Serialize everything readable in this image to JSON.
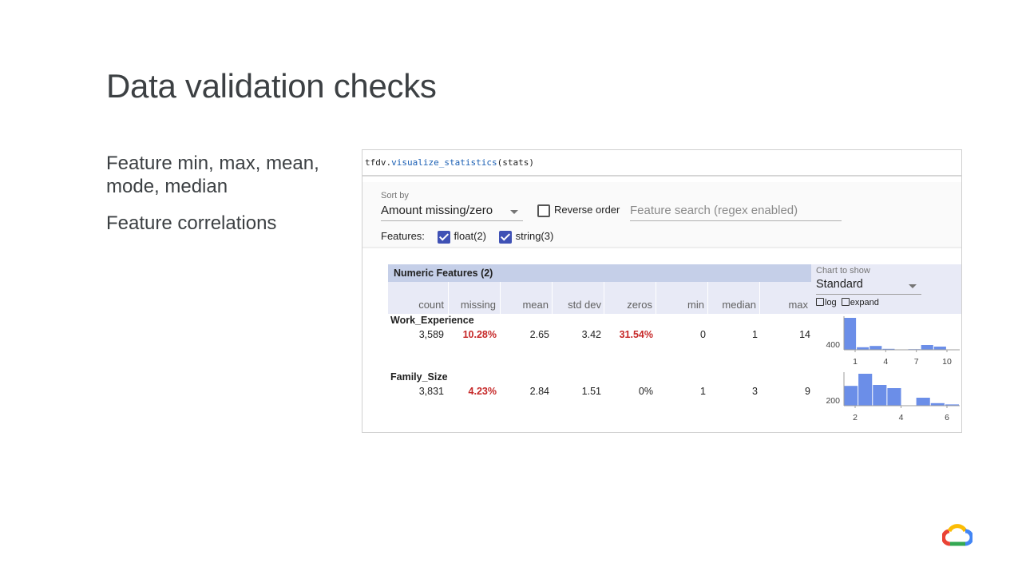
{
  "slide": {
    "title": "Data validation checks",
    "bullets": [
      "Feature min, max, mean, mode, median",
      "Feature correlations"
    ]
  },
  "notebook": {
    "code_prefix": "tfdv.",
    "code_fn": "visualize_statistics",
    "code_args": "(stats)"
  },
  "controls": {
    "sort_by_label": "Sort by",
    "sort_by_value": "Amount missing/zero",
    "reverse_order_label": "Reverse order",
    "reverse_order_checked": false,
    "search_placeholder": "Feature search (regex enabled)",
    "features_label": "Features:",
    "feature_filters": [
      {
        "label": "float(2)",
        "checked": true
      },
      {
        "label": "string(3)",
        "checked": true
      }
    ]
  },
  "table": {
    "title": "Numeric Features (2)",
    "columns": [
      "count",
      "missing",
      "mean",
      "std dev",
      "zeros",
      "min",
      "median",
      "max"
    ],
    "chart_to_show_label": "Chart to show",
    "chart_to_show_value": "Standard",
    "log_label": "log",
    "expand_label": "expand",
    "rows": [
      {
        "name": "Work_Experience",
        "values": [
          "3,589",
          "10.28%",
          "2.65",
          "3.42",
          "31.54%",
          "0",
          "1",
          "14"
        ],
        "highlight": [
          false,
          true,
          false,
          false,
          true,
          false,
          false,
          false
        ],
        "histogram": {
          "y_tick": "400",
          "x_ticks": [
            "1",
            "4",
            "7",
            "10"
          ],
          "bars": [
            1.0,
            0.08,
            0.12,
            0.03,
            0.0,
            0.02,
            0.15,
            0.1,
            0.0
          ]
        }
      },
      {
        "name": "Family_Size",
        "values": [
          "3,831",
          "4.23%",
          "2.84",
          "1.51",
          "0%",
          "1",
          "3",
          "9"
        ],
        "highlight": [
          false,
          true,
          false,
          false,
          false,
          false,
          false,
          false
        ],
        "histogram": {
          "y_tick": "200",
          "x_ticks": [
            "2",
            "4",
            "6"
          ],
          "bars": [
            0.62,
            1.0,
            0.65,
            0.55,
            0.0,
            0.25,
            0.08,
            0.04
          ]
        }
      }
    ]
  },
  "colors": {
    "accent": "#3f51b5",
    "highlight_red": "#c62828",
    "histogram_bar": "#6b8ee8",
    "table_header": "#c5cfe8"
  },
  "logo": {
    "name": "google-cloud-logo"
  }
}
